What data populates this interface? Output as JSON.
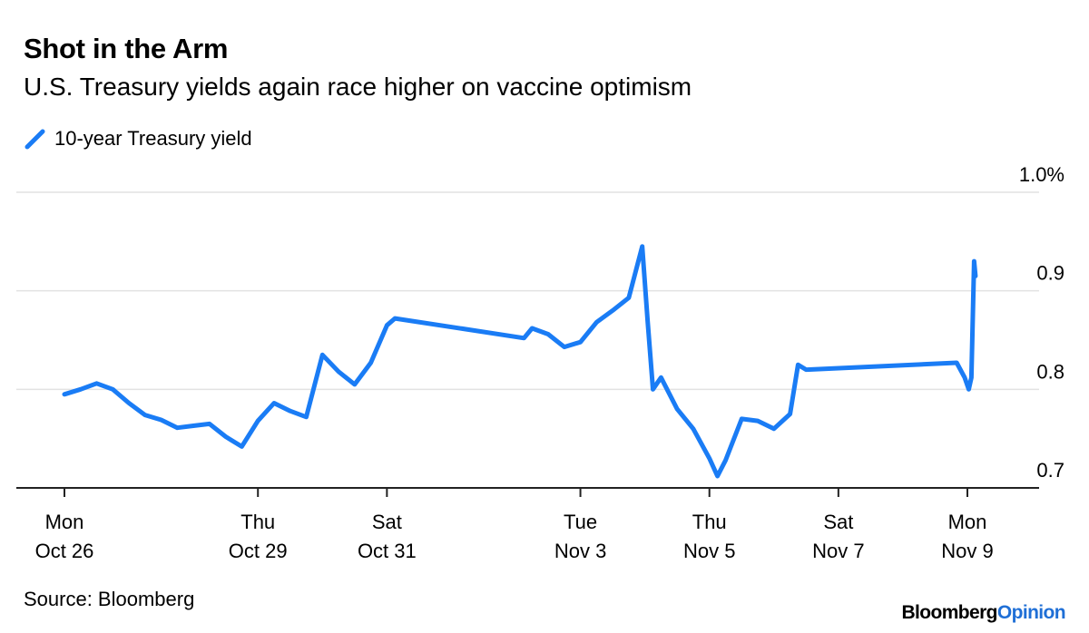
{
  "header": {
    "title": "Shot in the Arm",
    "subtitle": "U.S. Treasury yields again race higher on vaccine optimism"
  },
  "footer": {
    "source": "Source: Bloomberg",
    "brand_main": "Bloomberg",
    "brand_accent": "Opinion"
  },
  "colors": {
    "line": "#1a7cf5",
    "grid": "#e2e2e2",
    "axis": "#222222",
    "brand_accent": "#1f6fd6"
  },
  "chart_data": {
    "type": "line",
    "title": "Shot in the Arm",
    "subtitle": "U.S. Treasury yields again race higher on vaccine optimism",
    "legend": "top-left",
    "grid": true,
    "y_unit": "%",
    "ylim": [
      0.7,
      1.0
    ],
    "yticks": [
      {
        "value": 1.0,
        "label": "1.0%"
      },
      {
        "value": 0.9,
        "label": "0.9"
      },
      {
        "value": 0.8,
        "label": "0.8"
      },
      {
        "value": 0.7,
        "label": "0.7"
      }
    ],
    "xlim": [
      "2020-10-26",
      "2020-11-09"
    ],
    "xticks": [
      {
        "date": "2020-10-26",
        "day": "Mon",
        "date_label": "Oct 26"
      },
      {
        "date": "2020-10-29",
        "day": "Thu",
        "date_label": "Oct 29"
      },
      {
        "date": "2020-10-31",
        "day": "Sat",
        "date_label": "Oct 31"
      },
      {
        "date": "2020-11-03",
        "day": "Tue",
        "date_label": "Nov 3"
      },
      {
        "date": "2020-11-05",
        "day": "Thu",
        "date_label": "Nov 5"
      },
      {
        "date": "2020-11-07",
        "day": "Sat",
        "date_label": "Nov 7"
      },
      {
        "date": "2020-11-09",
        "day": "Mon",
        "date_label": "Nov 9"
      }
    ],
    "series": [
      {
        "name": "10-year Treasury yield",
        "points": [
          [
            "2020-10-26 00:00",
            0.795
          ],
          [
            "2020-10-26 06:00",
            0.8
          ],
          [
            "2020-10-26 12:00",
            0.806
          ],
          [
            "2020-10-26 18:00",
            0.8
          ],
          [
            "2020-10-27 00:00",
            0.786
          ],
          [
            "2020-10-27 06:00",
            0.774
          ],
          [
            "2020-10-27 12:00",
            0.769
          ],
          [
            "2020-10-27 18:00",
            0.761
          ],
          [
            "2020-10-28 00:00",
            0.763
          ],
          [
            "2020-10-28 06:00",
            0.765
          ],
          [
            "2020-10-28 12:00",
            0.752
          ],
          [
            "2020-10-28 18:00",
            0.742
          ],
          [
            "2020-10-29 00:00",
            0.768
          ],
          [
            "2020-10-29 06:00",
            0.786
          ],
          [
            "2020-10-29 12:00",
            0.778
          ],
          [
            "2020-10-29 18:00",
            0.772
          ],
          [
            "2020-10-30 00:00",
            0.835
          ],
          [
            "2020-10-30 06:00",
            0.818
          ],
          [
            "2020-10-30 12:00",
            0.805
          ],
          [
            "2020-10-30 18:00",
            0.827
          ],
          [
            "2020-10-31 00:00",
            0.865
          ],
          [
            "2020-10-31 03:00",
            0.872
          ],
          [
            "2020-11-02 03:00",
            0.852
          ],
          [
            "2020-11-02 06:00",
            0.862
          ],
          [
            "2020-11-02 12:00",
            0.856
          ],
          [
            "2020-11-02 18:00",
            0.843
          ],
          [
            "2020-11-03 00:00",
            0.848
          ],
          [
            "2020-11-03 06:00",
            0.868
          ],
          [
            "2020-11-03 12:00",
            0.88
          ],
          [
            "2020-11-03 18:00",
            0.893
          ],
          [
            "2020-11-03 23:00",
            0.945
          ],
          [
            "2020-11-04 01:00",
            0.87
          ],
          [
            "2020-11-04 03:00",
            0.8
          ],
          [
            "2020-11-04 06:00",
            0.812
          ],
          [
            "2020-11-04 12:00",
            0.78
          ],
          [
            "2020-11-04 18:00",
            0.76
          ],
          [
            "2020-11-05 00:00",
            0.73
          ],
          [
            "2020-11-05 03:00",
            0.712
          ],
          [
            "2020-11-05 06:00",
            0.728
          ],
          [
            "2020-11-05 12:00",
            0.77
          ],
          [
            "2020-11-05 18:00",
            0.768
          ],
          [
            "2020-11-06 00:00",
            0.76
          ],
          [
            "2020-11-06 06:00",
            0.775
          ],
          [
            "2020-11-06 09:00",
            0.825
          ],
          [
            "2020-11-06 12:00",
            0.82
          ],
          [
            "2020-11-08 20:00",
            0.827
          ],
          [
            "2020-11-08 23:00",
            0.812
          ],
          [
            "2020-11-09 00:30",
            0.8
          ],
          [
            "2020-11-09 01:30",
            0.812
          ],
          [
            "2020-11-09 02:30",
            0.93
          ],
          [
            "2020-11-09 03:00",
            0.915
          ]
        ]
      }
    ]
  }
}
